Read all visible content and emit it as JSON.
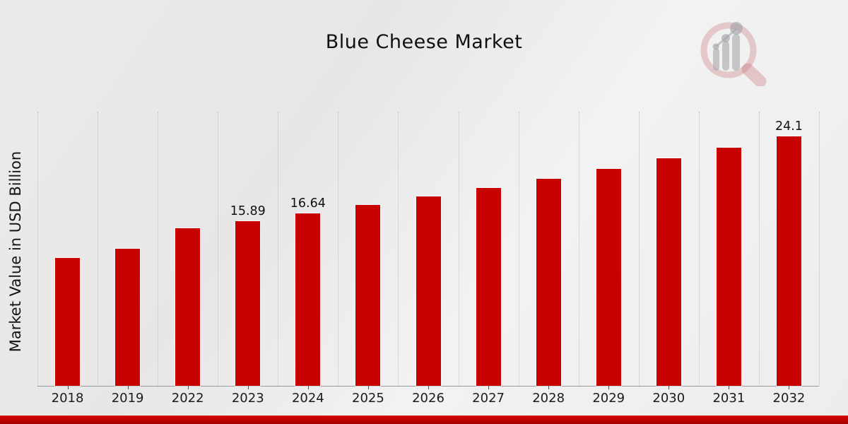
{
  "header": {
    "title": "Blue Cheese Market"
  },
  "y_axis": {
    "label": "Market Value in USD Billion"
  },
  "watermark": {
    "name": "market-research-future-logo",
    "lens_color": "rgba(196,106,112,0.30)",
    "bar_color": "rgba(160,160,166,0.55)"
  },
  "footer": {
    "band_color": "#b30000"
  },
  "chart_data": {
    "type": "bar",
    "title": "Blue Cheese Market",
    "xlabel": "",
    "ylabel": "Market Value in USD Billion",
    "categories": [
      "2018",
      "2019",
      "2022",
      "2023",
      "2024",
      "2025",
      "2026",
      "2027",
      "2028",
      "2029",
      "2030",
      "2031",
      "2032"
    ],
    "values": [
      12.38,
      13.26,
      15.23,
      15.89,
      16.64,
      17.43,
      18.25,
      19.12,
      20.02,
      20.97,
      21.97,
      23.01,
      24.1
    ],
    "data_labels": {
      "2023": "15.89",
      "2024": "16.64",
      "2032": "24.1"
    },
    "bar_color": "#c80101",
    "ylim": [
      0,
      26.6
    ],
    "grid": "vertical dotted lines at category boundaries",
    "legend": "none"
  }
}
